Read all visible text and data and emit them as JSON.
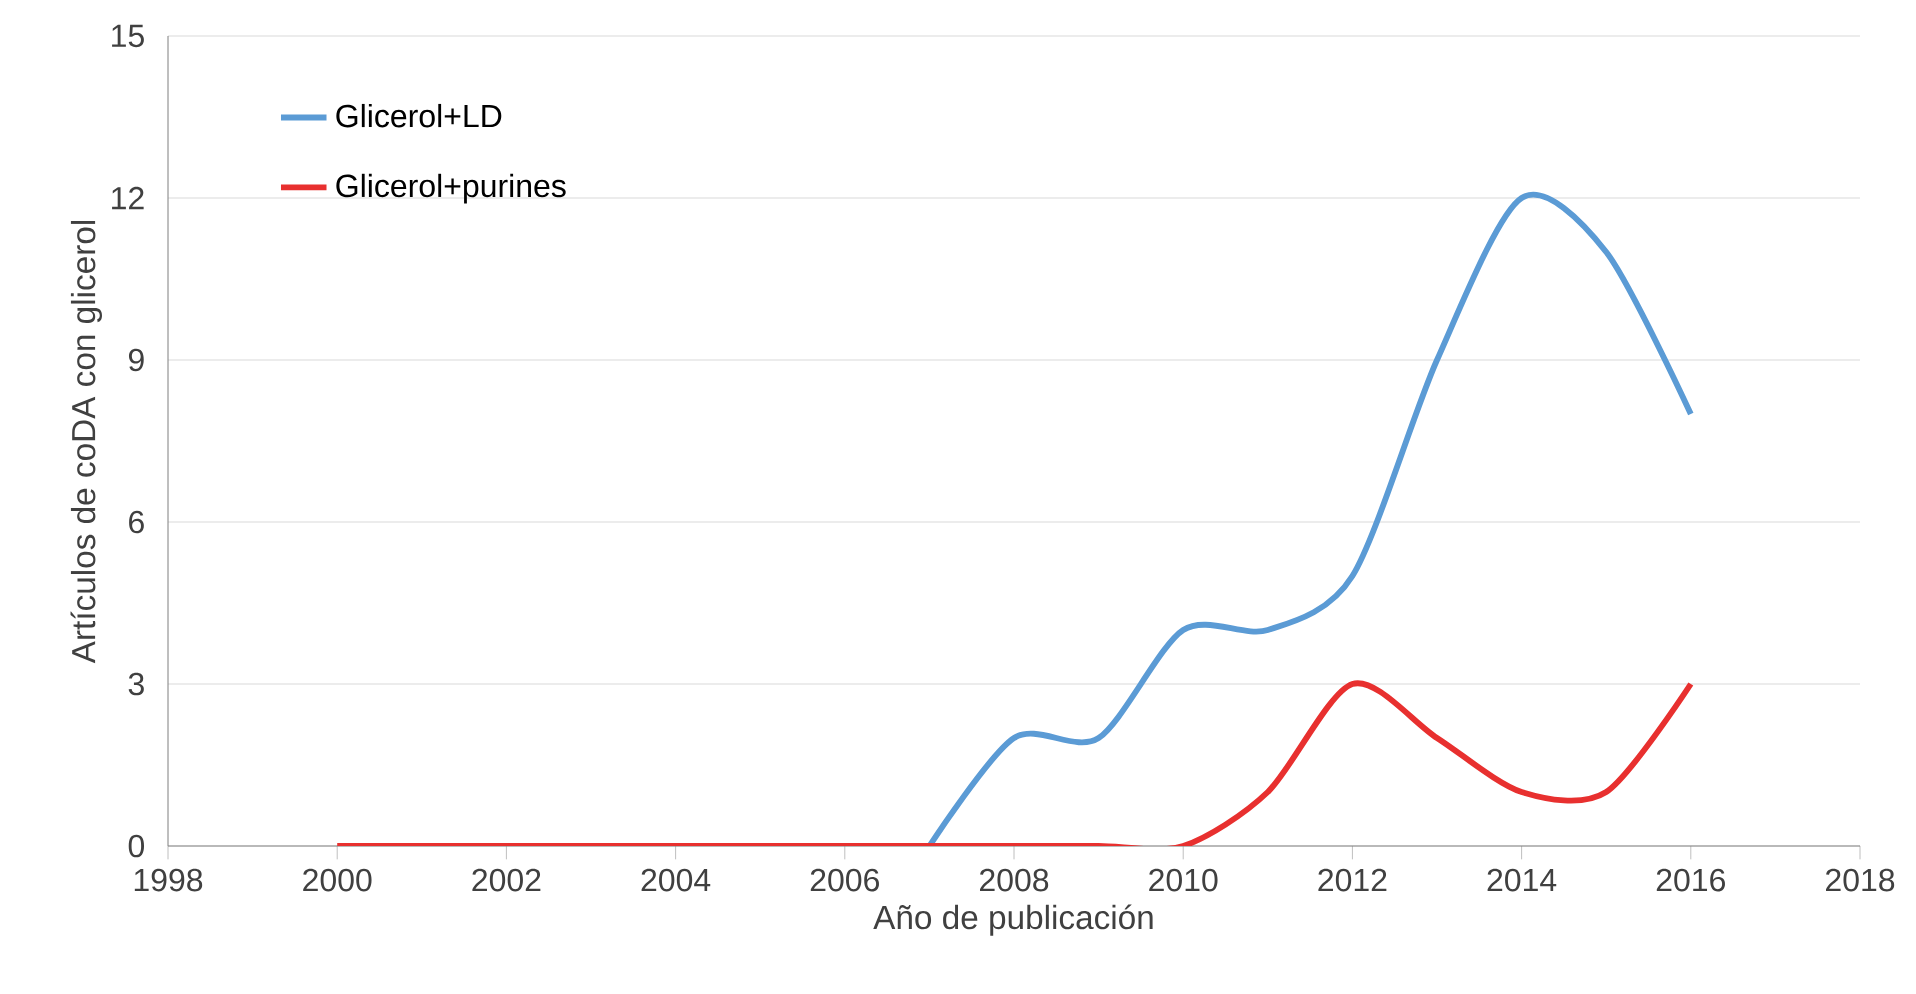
{
  "chart_data": {
    "type": "line",
    "xlabel": "Año de publicación",
    "ylabel": "Artículos de coDA con glicerol",
    "x": [
      2000,
      2001,
      2002,
      2003,
      2004,
      2005,
      2006,
      2007,
      2008,
      2009,
      2010,
      2011,
      2012,
      2013,
      2014,
      2015,
      2016
    ],
    "series": [
      {
        "name": "Glicerol+LD",
        "color": "#5b9bd5",
        "values": [
          null,
          null,
          null,
          null,
          null,
          null,
          null,
          0,
          2,
          2,
          4,
          4,
          5,
          9,
          12,
          11,
          8
        ]
      },
      {
        "name": "Glicerol+purines",
        "color": "#e8302f",
        "values": [
          0,
          0,
          0,
          0,
          0,
          0,
          0,
          0,
          0,
          0,
          0,
          1,
          3,
          2,
          1,
          1,
          3
        ]
      }
    ],
    "xlim": [
      1998,
      2018
    ],
    "xticks": [
      1998,
      2000,
      2002,
      2004,
      2006,
      2008,
      2010,
      2012,
      2014,
      2016,
      2018
    ],
    "ylim": [
      0,
      15
    ],
    "yticks": [
      0,
      3,
      6,
      9,
      12,
      15
    ],
    "grid": "y",
    "legend": "top left",
    "marker": "none",
    "line_style": "solid"
  }
}
